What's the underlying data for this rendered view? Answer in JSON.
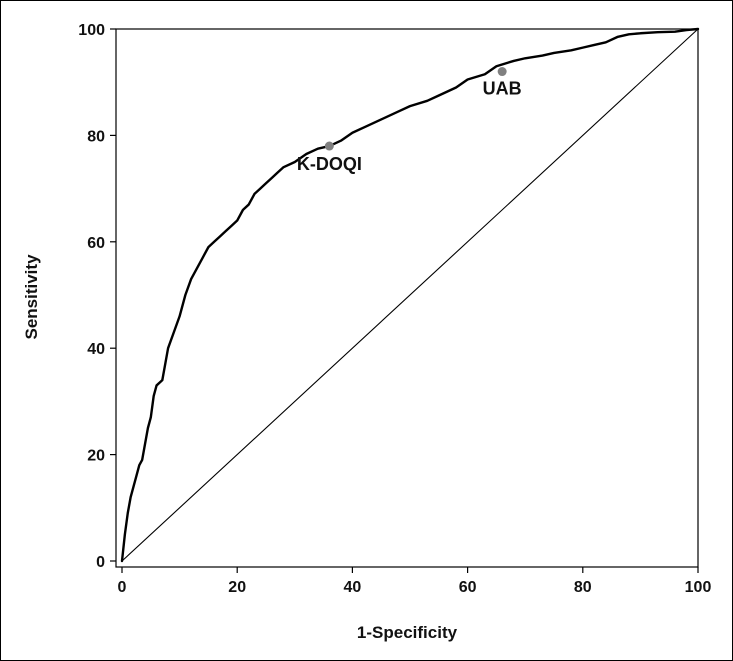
{
  "chart_data": {
    "type": "line",
    "title": "",
    "xlabel": "1-Specificity",
    "ylabel": "Sensitivity",
    "xlim": [
      0,
      100
    ],
    "ylim": [
      0,
      100
    ],
    "xticks": [
      0,
      20,
      40,
      60,
      80,
      100
    ],
    "yticks": [
      0,
      20,
      40,
      60,
      80,
      100
    ],
    "grid": false,
    "series": [
      {
        "kind": "roc-curve",
        "color": "#000000",
        "x": [
          0,
          0.2,
          0.5,
          1,
          1.5,
          2,
          2.5,
          3,
          3.5,
          4,
          4.5,
          5,
          5.5,
          6,
          7,
          7.5,
          8,
          9,
          10,
          11,
          12,
          13,
          14,
          15,
          16,
          17,
          18,
          19,
          20,
          21,
          22,
          23,
          24,
          25,
          26,
          27,
          28,
          30,
          32,
          34,
          36,
          38,
          40,
          42,
          45,
          48,
          50,
          53,
          55,
          58,
          60,
          63,
          65,
          68,
          70,
          73,
          75,
          78,
          80,
          82,
          84,
          86,
          88,
          90,
          93,
          96,
          98,
          100
        ],
        "y": [
          0,
          2,
          5,
          9,
          12,
          14,
          16,
          18,
          19,
          22,
          25,
          27,
          31,
          33,
          34,
          37,
          40,
          43,
          46,
          50,
          53,
          55,
          57,
          59,
          60,
          61,
          62,
          63,
          64,
          66,
          67,
          69,
          70,
          71,
          72,
          73,
          74,
          75,
          76.5,
          77.5,
          78,
          79,
          80.5,
          81.5,
          83,
          84.5,
          85.5,
          86.5,
          87.5,
          89,
          90.5,
          91.5,
          93,
          94,
          94.5,
          95,
          95.5,
          96,
          96.5,
          97,
          97.5,
          98.5,
          99,
          99.2,
          99.4,
          99.5,
          99.8,
          100
        ]
      },
      {
        "kind": "reference-diagonal",
        "color": "#000000",
        "x": [
          0,
          100
        ],
        "y": [
          0,
          100
        ]
      }
    ],
    "points": [
      {
        "label": "K-DOQI",
        "x": 36,
        "y": 78,
        "color": "#808080"
      },
      {
        "label": "UAB",
        "x": 66,
        "y": 92,
        "color": "#808080"
      }
    ]
  }
}
